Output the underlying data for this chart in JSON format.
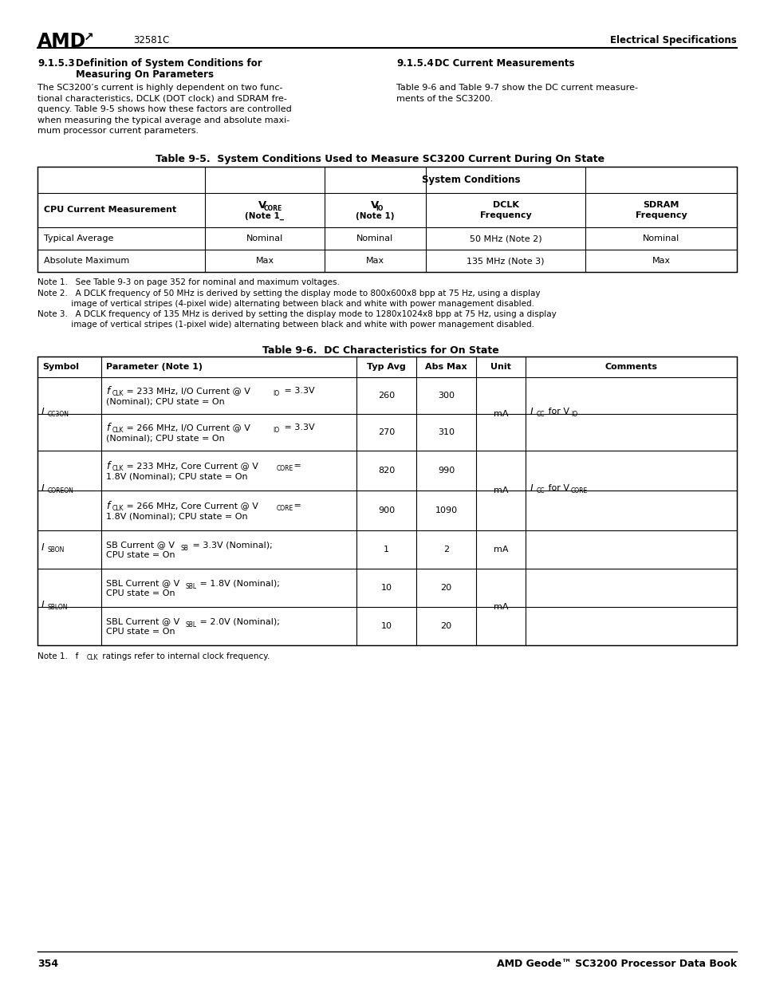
{
  "page_num": "354",
  "page_right": "AMD Geode™ SC3200 Processor Data Book",
  "header_center": "32581C",
  "header_right": "Electrical Specifications",
  "bg_color": "#ffffff"
}
